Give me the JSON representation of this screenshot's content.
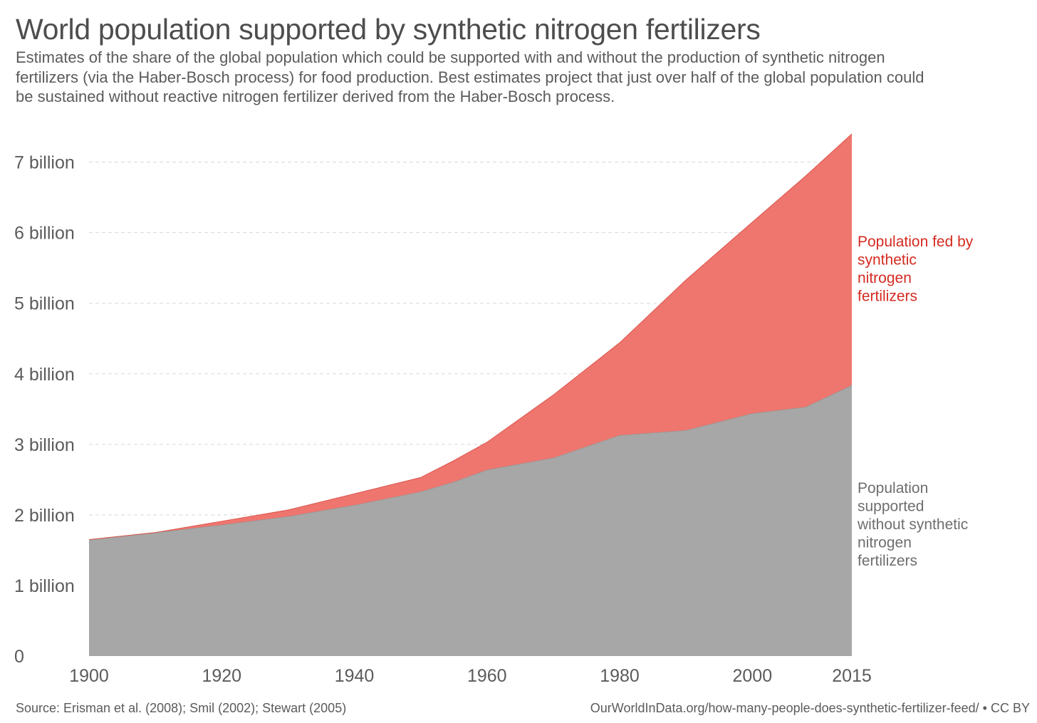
{
  "title": "World population supported by synthetic nitrogen fertilizers",
  "subtitle": "Estimates of the share of the global population which could be supported with and without the production of synthetic nitrogen fertilizers (via the Haber-Bosch process) for food production. Best estimates project that just over half of the global population could be sustained without reactive nitrogen fertilizer derived from the Haber-Bosch process.",
  "source": "Source: Erisman et al. (2008); Smil (2002); Stewart (2005)",
  "footer": "OurWorldInData.org/how-many-people-does-synthetic-fertilizer-feed/ • CC BY",
  "chart_data": {
    "type": "area",
    "stacked": true,
    "x": [
      1900,
      1910,
      1920,
      1930,
      1940,
      1950,
      1955,
      1960,
      1970,
      1980,
      1990,
      2000,
      2008,
      2015
    ],
    "series": [
      {
        "name": "Population supported without synthetic nitrogen fertilizers",
        "label_lines": [
          "Population",
          "supported",
          "without synthetic",
          "nitrogen",
          "fertilizers"
        ],
        "color": "#a6a7a6",
        "label_color": "#6e6e6e",
        "values": [
          1.65,
          1.75,
          1.86,
          1.98,
          2.14,
          2.33,
          2.47,
          2.64,
          2.81,
          3.13,
          3.2,
          3.44,
          3.53,
          3.84
        ]
      },
      {
        "name": "Population fed by synthetic nitrogen fertilizers",
        "label_lines": [
          "Population fed by",
          "synthetic",
          "nitrogen",
          "fertilizers"
        ],
        "color": "#ef766f",
        "label_color": "#d42b21",
        "values": [
          0.0,
          0.0,
          0.05,
          0.09,
          0.16,
          0.2,
          0.3,
          0.39,
          0.89,
          1.31,
          2.13,
          2.71,
          3.27,
          3.56
        ]
      }
    ],
    "xlim": [
      1900,
      2015
    ],
    "ylim": [
      0,
      7.4
    ],
    "x_ticks": [
      1900,
      1920,
      1940,
      1960,
      1980,
      2000,
      2015
    ],
    "y_ticks": [
      0,
      1,
      2,
      3,
      4,
      5,
      6,
      7
    ],
    "y_tick_labels": [
      "0",
      "1 billion",
      "2 billion",
      "3 billion",
      "4 billion",
      "5 billion",
      "6 billion",
      "7 billion"
    ],
    "grid": "horizontal-dashed",
    "legend": "right, inline labels"
  }
}
